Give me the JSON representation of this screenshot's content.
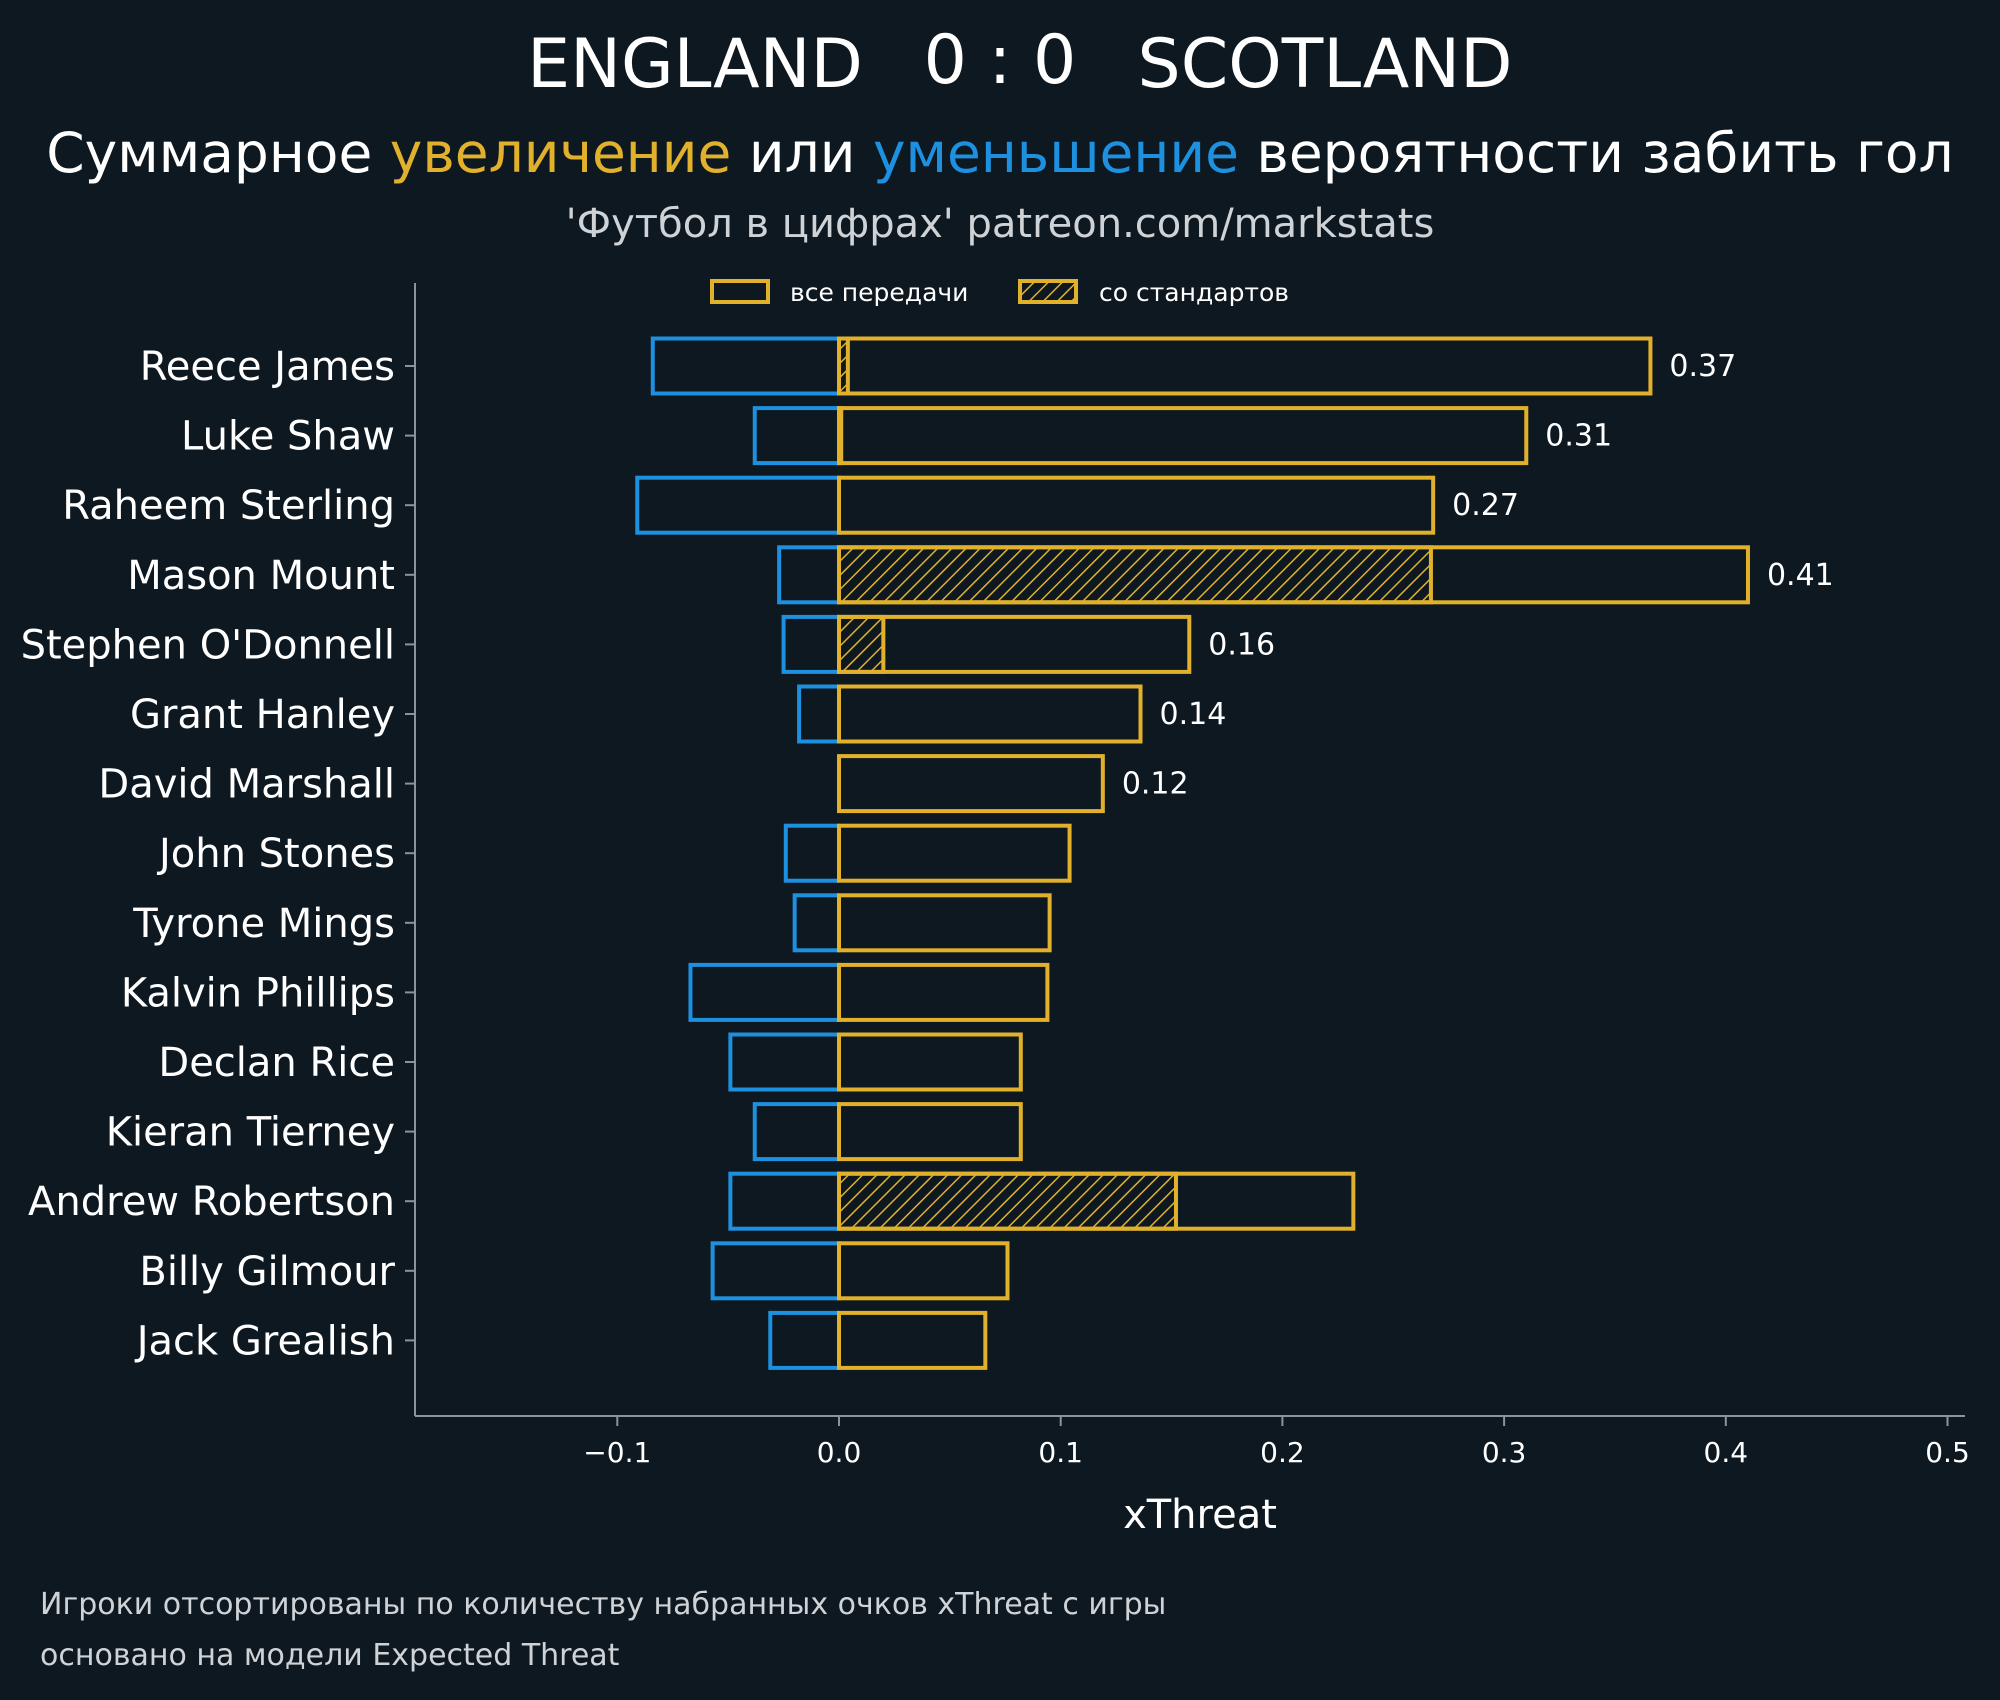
{
  "header": {
    "home_team": "ENGLAND",
    "score": "0 : 0",
    "away_team": "SCOTLAND",
    "subtitle_parts": [
      "Суммарное ",
      "увеличение",
      " или ",
      "уменьшение",
      " вероятности забить гол"
    ],
    "source": "'Футбол в цифрах' patreon.com/markstats"
  },
  "legend": {
    "all_passes": "все передачи",
    "set_pieces": "со стандартов"
  },
  "colors": {
    "background": "#0e1821",
    "positive": "#e1b12c",
    "negative": "#1e90e0",
    "axis": "#8a949c"
  },
  "footer": {
    "line1": "Игроки отсортированы по количеству набранных очков xThreat с игры",
    "line2": "основано на модели Expected Threat"
  },
  "chart_data": {
    "type": "bar",
    "orientation": "horizontal",
    "xlabel": "xThreat",
    "xlim": [
      -0.19,
      0.51
    ],
    "xticks": [
      -0.1,
      0.0,
      0.1,
      0.2,
      0.3,
      0.4,
      0.5
    ],
    "xtick_labels": [
      "−0.1",
      "0.0",
      "0.1",
      "0.2",
      "0.3",
      "0.4",
      "0.5"
    ],
    "categories": [
      "Reece James",
      "Luke Shaw",
      "Raheem Sterling",
      "Mason Mount",
      "Stephen O'Donnell",
      "Grant Hanley",
      "David Marshall",
      "John Stones",
      "Tyrone Mings",
      "Kalvin Phillips",
      "Declan Rice",
      "Kieran Tierney",
      "Andrew Robertson",
      "Billy Gilmour",
      "Jack Grealish"
    ],
    "series": [
      {
        "name": "все передачи (увеличение)",
        "values": [
          0.366,
          0.31,
          0.268,
          0.41,
          0.158,
          0.136,
          0.119,
          0.104,
          0.095,
          0.094,
          0.082,
          0.082,
          0.232,
          0.076,
          0.066
        ]
      },
      {
        "name": "со стандартов",
        "values": [
          0.004,
          0.001,
          0.0,
          0.267,
          0.02,
          0.0,
          0.0,
          0.0,
          0.0,
          0.0,
          0.0,
          0.0,
          0.152,
          0.0,
          0.0
        ]
      },
      {
        "name": "уменьшение",
        "values": [
          -0.084,
          -0.038,
          -0.091,
          -0.027,
          -0.025,
          -0.018,
          0.0,
          -0.024,
          -0.02,
          -0.067,
          -0.049,
          -0.038,
          -0.049,
          -0.057,
          -0.031
        ]
      }
    ],
    "data_labels": [
      "0.37",
      "0.31",
      "0.27",
      "0.41",
      "0.16",
      "0.14",
      "0.12",
      "",
      "",
      "",
      "",
      "",
      "",
      "",
      ""
    ]
  }
}
